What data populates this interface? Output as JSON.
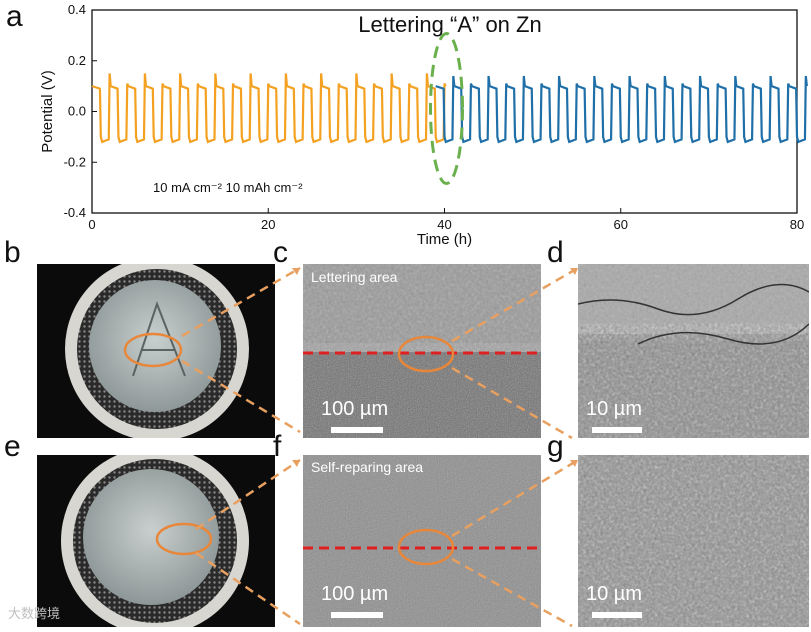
{
  "panels": {
    "a": "a",
    "b": "b",
    "c": "c",
    "d": "d",
    "e": "e",
    "f": "f",
    "g": "g"
  },
  "chart_data": {
    "type": "line",
    "title": "Lettering “A” on Zn",
    "xlabel": "Time (h)",
    "ylabel": "Potential (V)",
    "xlim": [
      0,
      80
    ],
    "ylim": [
      -0.4,
      0.4
    ],
    "xticks": [
      "0",
      "20",
      "40",
      "60",
      "80"
    ],
    "yticks": [
      "0.4",
      "0.2",
      "0.0",
      "-0.2",
      "-0.4"
    ],
    "annotation": "10 mA cm⁻² 10 mAh cm⁻²",
    "cycle_period_h": 2,
    "series": [
      {
        "x_range": [
          0,
          39
        ],
        "high": 0.1,
        "low": -0.12,
        "spike_high": 0.15,
        "color": "#f4a020"
      },
      {
        "x_range": [
          39,
          80
        ],
        "high": 0.1,
        "low": -0.12,
        "spike_high": 0.14,
        "color": "#1f6fa8"
      }
    ],
    "highlight": {
      "x": 40,
      "y": 0.0,
      "color": "#6ab04c"
    }
  },
  "sem": {
    "c_caption": "Lettering area",
    "f_caption": "Self-reparing area",
    "scale_100": "100 µm",
    "scale_10": "10 µm"
  },
  "watermark": "大数跨境",
  "colors": {
    "orange": "#f4a020",
    "blue": "#1f6fa8",
    "red_dash": "#e02020",
    "connector": "#e8a060"
  }
}
